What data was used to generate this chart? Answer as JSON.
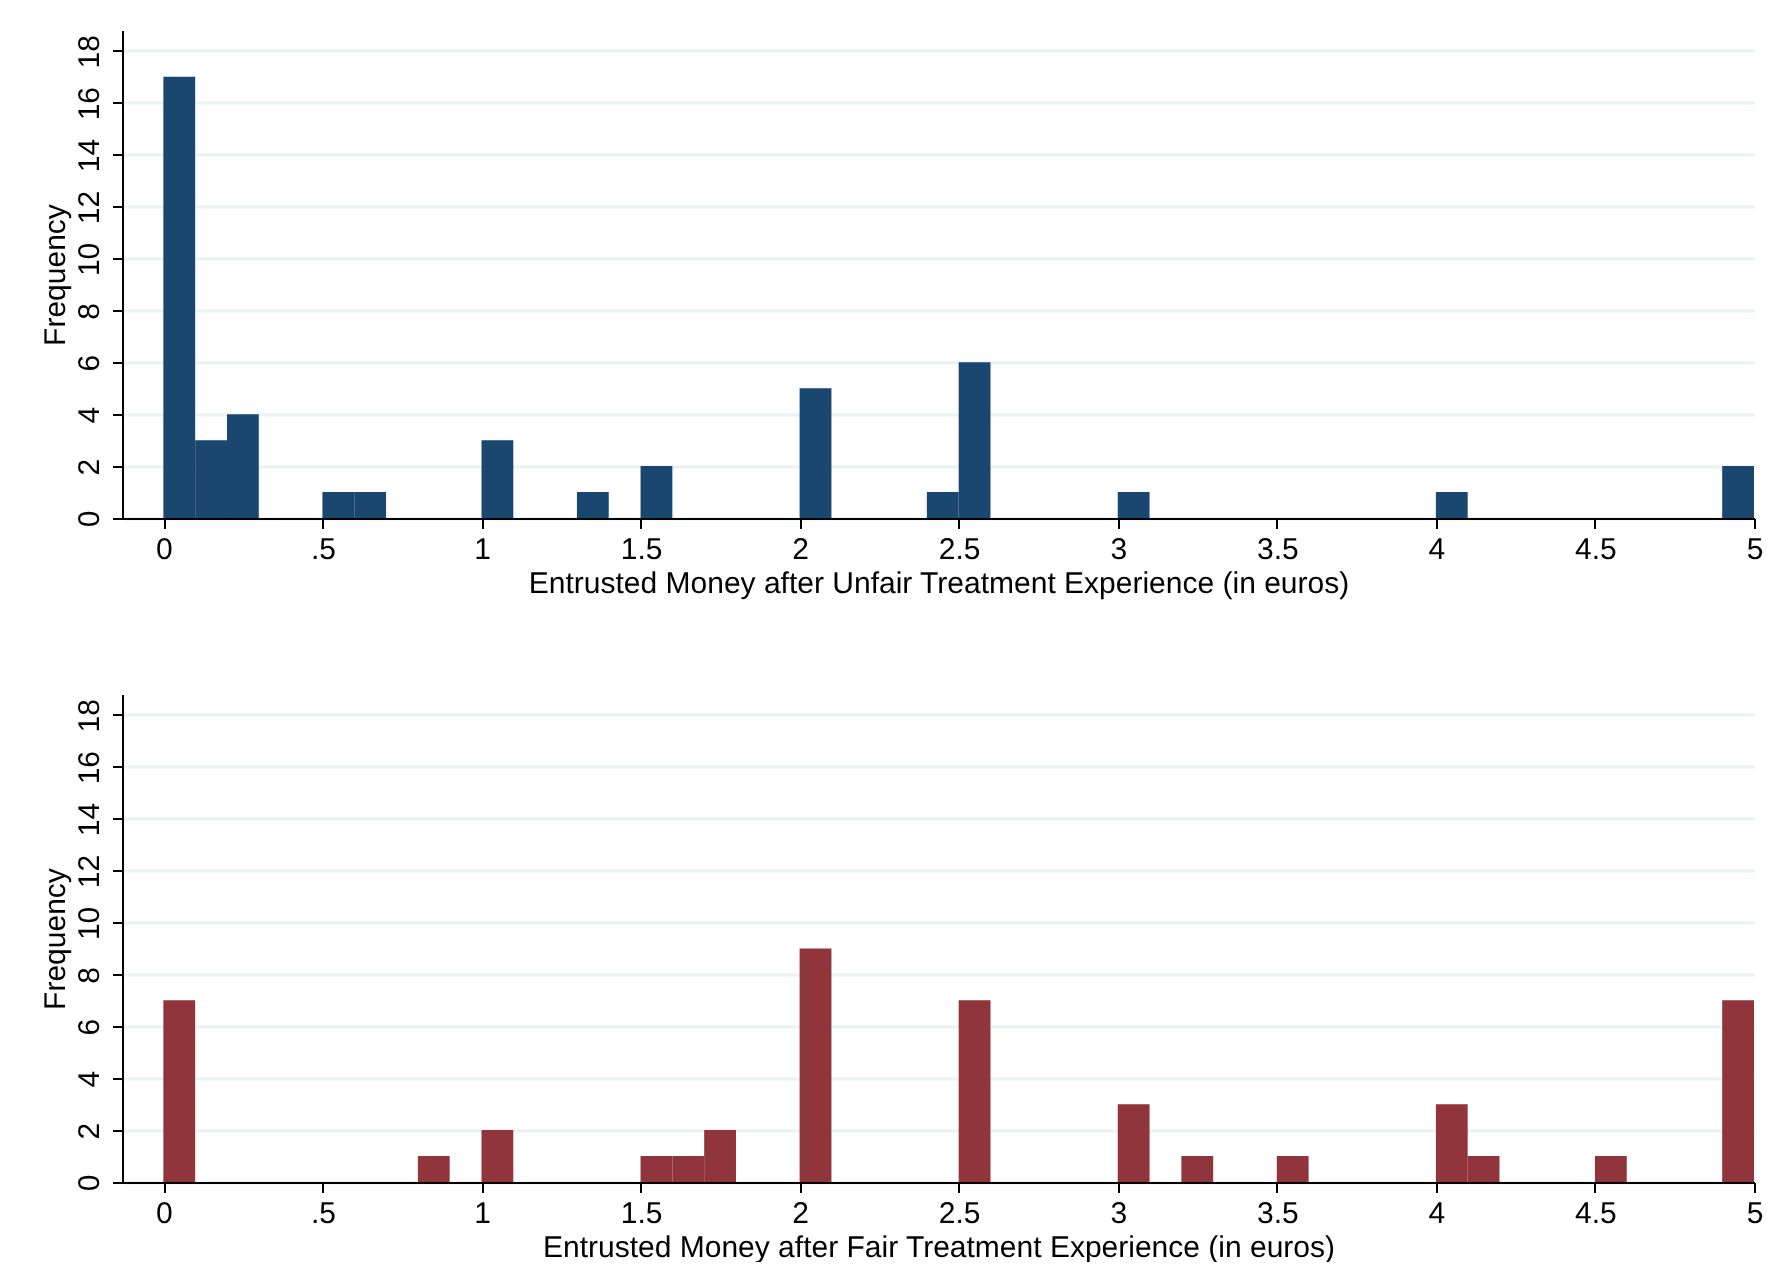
{
  "chart_data": [
    {
      "type": "histogram",
      "xlabel": "Entrusted Money after Unfair Treatment Experience (in euros)",
      "ylabel": "Frequency",
      "color": "#1a476f",
      "bins": [
        0,
        0.1,
        0.2,
        0.3,
        0.4,
        0.5,
        0.6,
        0.7,
        0.8,
        0.9,
        1,
        1.1,
        1.2,
        1.3,
        1.4,
        1.5,
        1.6,
        1.7,
        1.8,
        1.9,
        2,
        2.1,
        2.2,
        2.3,
        2.4,
        2.5,
        2.6,
        2.7,
        2.8,
        2.9,
        3,
        3.1,
        3.2,
        3.3,
        3.4,
        3.5,
        3.6,
        3.7,
        3.8,
        3.9,
        4,
        4.1,
        4.2,
        4.3,
        4.4,
        4.5,
        4.6,
        4.7,
        4.8,
        4.9,
        5
      ],
      "values": [
        17,
        3,
        4,
        0,
        0,
        1,
        1,
        0,
        0,
        0,
        3,
        0,
        0,
        1,
        0,
        2,
        0,
        0,
        0,
        0,
        5,
        0,
        0,
        0,
        1,
        6,
        0,
        0,
        0,
        0,
        1,
        0,
        0,
        0,
        0,
        0,
        0,
        0,
        0,
        0,
        1,
        0,
        0,
        0,
        0,
        0,
        0,
        0,
        0,
        2
      ],
      "xlim": [
        -0.13,
        5
      ],
      "xticks": [
        0,
        {
          "value": 0.5,
          "label": ".5"
        },
        1,
        1.5,
        2,
        2.5,
        3,
        3.5,
        4,
        4.5,
        5
      ],
      "ylim": [
        0,
        18.8
      ],
      "yticks": [
        0,
        2,
        4,
        6,
        8,
        10,
        12,
        14,
        16,
        18
      ],
      "grid": "y"
    },
    {
      "type": "histogram",
      "xlabel": "Entrusted Money after Fair Treatment Experience (in euros)",
      "ylabel": "Frequency",
      "color": "#90353b",
      "bins": [
        0,
        0.1,
        0.2,
        0.3,
        0.4,
        0.5,
        0.6,
        0.7,
        0.8,
        0.9,
        1,
        1.1,
        1.2,
        1.3,
        1.4,
        1.5,
        1.6,
        1.7,
        1.8,
        1.9,
        2,
        2.1,
        2.2,
        2.3,
        2.4,
        2.5,
        2.6,
        2.7,
        2.8,
        2.9,
        3,
        3.1,
        3.2,
        3.3,
        3.4,
        3.5,
        3.6,
        3.7,
        3.8,
        3.9,
        4,
        4.1,
        4.2,
        4.3,
        4.4,
        4.5,
        4.6,
        4.7,
        4.8,
        4.9,
        5
      ],
      "values": [
        7,
        0,
        0,
        0,
        0,
        0,
        0,
        0,
        1,
        0,
        2,
        0,
        0,
        0,
        0,
        1,
        1,
        2,
        0,
        0,
        9,
        0,
        0,
        0,
        0,
        7,
        0,
        0,
        0,
        0,
        3,
        0,
        1,
        0,
        0,
        1,
        0,
        0,
        0,
        0,
        3,
        1,
        0,
        0,
        0,
        1,
        0,
        0,
        0,
        7
      ],
      "xlim": [
        -0.13,
        5
      ],
      "xticks": [
        0,
        {
          "value": 0.5,
          "label": ".5"
        },
        1,
        1.5,
        2,
        2.5,
        3,
        3.5,
        4,
        4.5,
        5
      ],
      "ylim": [
        0,
        18.8
      ],
      "yticks": [
        0,
        2,
        4,
        6,
        8,
        10,
        12,
        14,
        16,
        18
      ],
      "grid": "y"
    }
  ]
}
